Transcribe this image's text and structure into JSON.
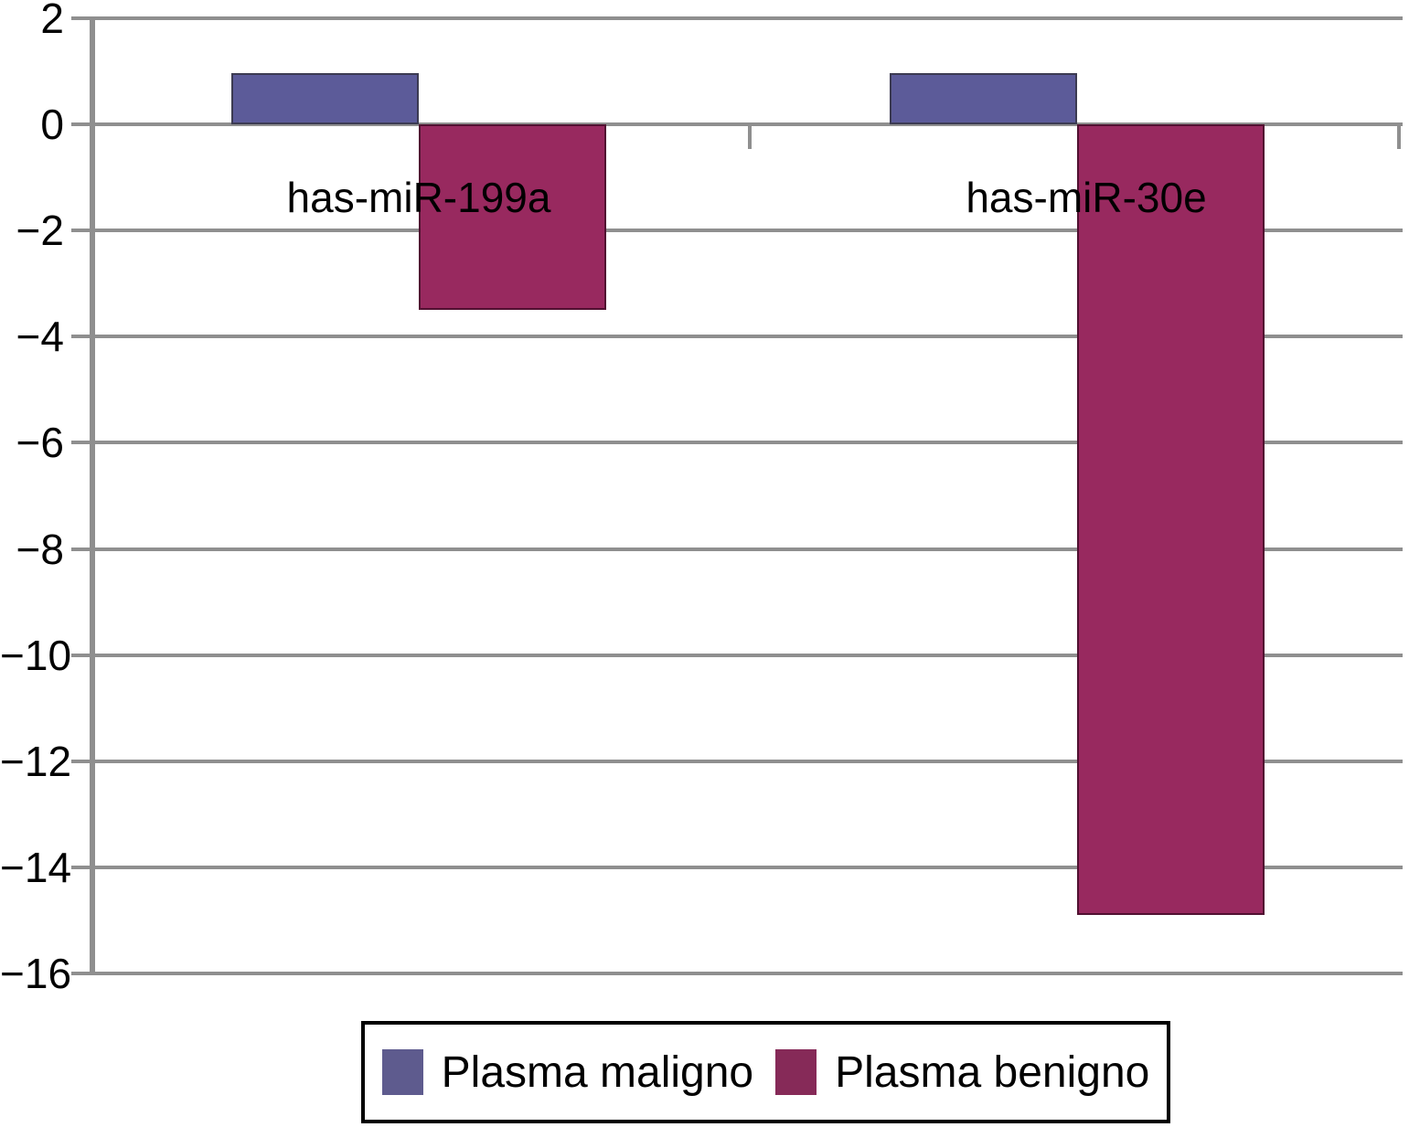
{
  "chart_data": {
    "type": "bar",
    "categories": [
      "has-miR-199a",
      "has-miR-30e"
    ],
    "series": [
      {
        "name": "Plasma maligno",
        "values": [
          0.97,
          0.97
        ]
      },
      {
        "name": "Plasma benigno",
        "values": [
          -3.5,
          -14.9
        ]
      }
    ],
    "title": "",
    "xlabel": "",
    "ylabel": "",
    "ylim": [
      -16,
      2
    ],
    "yticks": [
      2,
      0,
      -2,
      -4,
      -6,
      -8,
      -10,
      -12,
      -14,
      -16
    ],
    "grid": true,
    "legend_position": "bottom"
  },
  "axis": {
    "tick_labels": [
      "2",
      "0",
      "−2",
      "−4",
      "−6",
      "−8",
      "−10",
      "−12",
      "−14",
      "−16"
    ]
  },
  "legend": {
    "items": [
      {
        "label": "Plasma maligno",
        "color": "#5e5b8e",
        "border": "#3c3b52"
      },
      {
        "label": "Plasma benigno",
        "color": "#862a58",
        "border": "#511031"
      }
    ]
  },
  "colors": {
    "series_fill": [
      "#5c5b99",
      "#98295f"
    ],
    "series_border": [
      "#3c3b52",
      "#511031"
    ],
    "gridline": "#8f8f8f",
    "axis": "#8f8f8f",
    "text": "#000000",
    "legend_border": "#000000",
    "background": "#ffffff"
  }
}
